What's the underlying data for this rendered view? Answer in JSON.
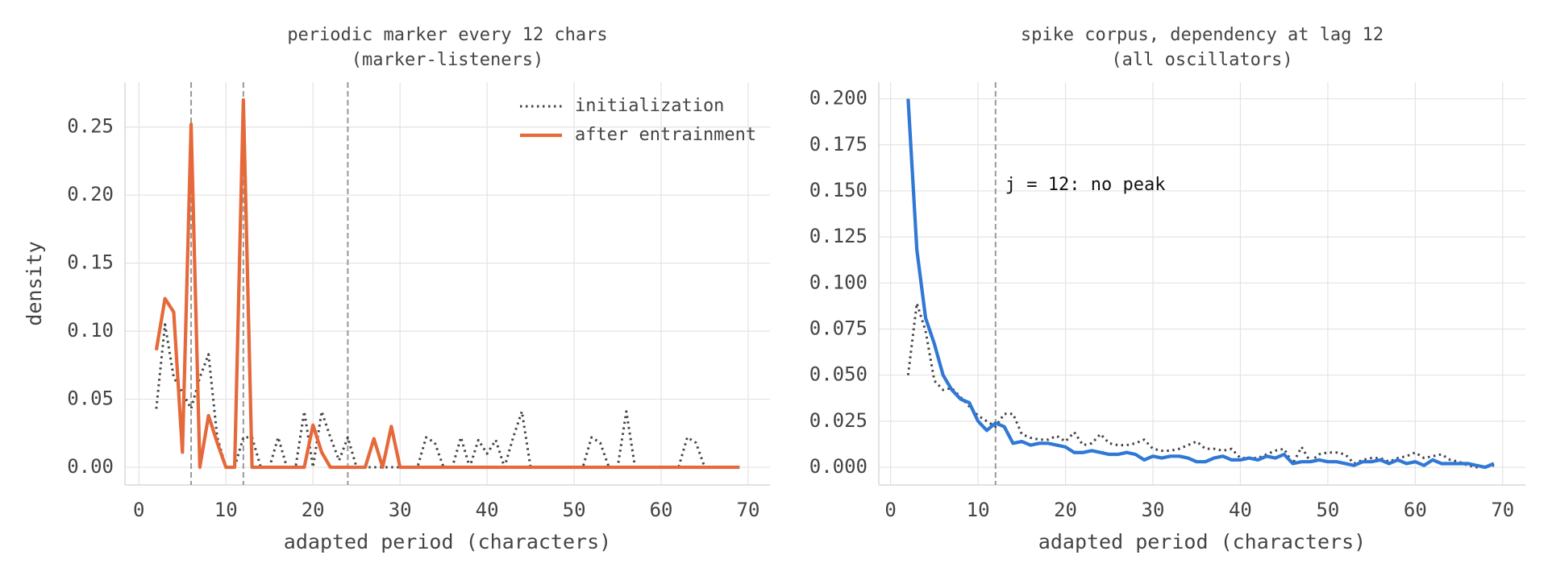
{
  "chart_data": [
    {
      "type": "line",
      "title": [
        "periodic marker every 12 chars",
        "(marker-listeners)"
      ],
      "xlabel": "adapted period (characters)",
      "ylabel": "density",
      "x": [
        2,
        3,
        4,
        5,
        6,
        7,
        8,
        9,
        10,
        11,
        12,
        13,
        14,
        15,
        16,
        17,
        18,
        19,
        20,
        21,
        22,
        23,
        24,
        25,
        26,
        27,
        28,
        29,
        30,
        31,
        32,
        33,
        34,
        35,
        36,
        37,
        38,
        39,
        40,
        41,
        42,
        43,
        44,
        45,
        46,
        47,
        48,
        49,
        50,
        51,
        52,
        53,
        54,
        55,
        56,
        57,
        58,
        59,
        60,
        61,
        62,
        63,
        64,
        65,
        66,
        67,
        68,
        69
      ],
      "series": [
        {
          "name": "initialization",
          "color": "#444444",
          "style": "dotted",
          "values": [
            0.043,
            0.105,
            0.066,
            0.055,
            0.043,
            0.066,
            0.083,
            0.022,
            0,
            0,
            0.022,
            0.022,
            0,
            0,
            0.022,
            0,
            0,
            0.041,
            0,
            0.041,
            0.022,
            0.005,
            0.022,
            0,
            0,
            0,
            0,
            0,
            0,
            0,
            0,
            0.022,
            0.018,
            0,
            0,
            0.022,
            0,
            0.02,
            0.01,
            0.02,
            0,
            0.022,
            0.041,
            0,
            0,
            0,
            0,
            0,
            0,
            0,
            0.022,
            0.018,
            0,
            0,
            0.041,
            0,
            0,
            0,
            0,
            0,
            0,
            0.022,
            0.018,
            0,
            0,
            0,
            0,
            0
          ]
        },
        {
          "name": "after entrainment",
          "color": "#e5693a",
          "style": "solid",
          "values": [
            0.086,
            0.124,
            0.114,
            0.011,
            0.252,
            0,
            0.038,
            0.018,
            0,
            0,
            0.27,
            0,
            0,
            0,
            0,
            0,
            0,
            0,
            0.031,
            0.011,
            0,
            0,
            0,
            0,
            0,
            0.021,
            0,
            0.03,
            0,
            0,
            0,
            0,
            0,
            0,
            0,
            0,
            0,
            0,
            0,
            0,
            0,
            0,
            0,
            0,
            0,
            0,
            0,
            0,
            0,
            0,
            0,
            0,
            0,
            0,
            0,
            0,
            0,
            0,
            0,
            0,
            0,
            0,
            0,
            0,
            0,
            0,
            0,
            0
          ]
        }
      ],
      "vlines": [
        6,
        12,
        24
      ],
      "xlim": [
        -1.6,
        72.5
      ],
      "xticks": [
        0,
        10,
        20,
        30,
        40,
        50,
        60,
        70
      ],
      "ylim": [
        -0.013,
        0.283
      ],
      "yticks": [
        {
          "value": 0,
          "label": "0.00"
        },
        0.05,
        {
          "value": 0.1,
          "label": "0.10"
        },
        0.15,
        {
          "value": 0.2,
          "label": "0.20"
        },
        0.25
      ],
      "grid": true,
      "legend": "upper right"
    },
    {
      "type": "line",
      "title": [
        "spike corpus, dependency at lag 12",
        "(all oscillators)"
      ],
      "xlabel": "adapted period (characters)",
      "annotation": "j = 12: no peak",
      "x": [
        2,
        3,
        4,
        5,
        6,
        7,
        8,
        9,
        10,
        11,
        12,
        13,
        14,
        15,
        16,
        17,
        18,
        19,
        20,
        21,
        22,
        23,
        24,
        25,
        26,
        27,
        28,
        29,
        30,
        31,
        32,
        33,
        34,
        35,
        36,
        37,
        38,
        39,
        40,
        41,
        42,
        43,
        44,
        45,
        46,
        47,
        48,
        49,
        50,
        51,
        52,
        53,
        54,
        55,
        56,
        57,
        58,
        59,
        60,
        61,
        62,
        63,
        64,
        65,
        66,
        67,
        68,
        69
      ],
      "series": [
        {
          "color": "#444444",
          "style": "dotted",
          "values": [
            0.05,
            0.089,
            0.074,
            0.047,
            0.042,
            0.043,
            0.038,
            0.033,
            0.028,
            0.025,
            0.022,
            0.029,
            0.029,
            0.018,
            0.016,
            0.015,
            0.015,
            0.017,
            0.014,
            0.019,
            0.012,
            0.013,
            0.018,
            0.013,
            0.012,
            0.012,
            0.013,
            0.015,
            0.01,
            0.009,
            0.009,
            0.01,
            0.012,
            0.014,
            0.01,
            0.01,
            0.009,
            0.01,
            0.005,
            0.005,
            0.005,
            0.007,
            0.009,
            0.01,
            0.002,
            0.011,
            0.003,
            0.007,
            0.008,
            0.008,
            0.007,
            0.002,
            0.004,
            0.005,
            0.005,
            0.003,
            0.005,
            0.006,
            0.008,
            0.005,
            0.006,
            0.007,
            0.004,
            0.003,
            0.001,
            0,
            0,
            0.001
          ]
        },
        {
          "color": "#2f78d6",
          "style": "solid",
          "values": [
            0.2,
            0.118,
            0.081,
            0.067,
            0.05,
            0.042,
            0.037,
            0.035,
            0.025,
            0.02,
            0.024,
            0.022,
            0.013,
            0.014,
            0.012,
            0.013,
            0.013,
            0.012,
            0.011,
            0.008,
            0.008,
            0.009,
            0.008,
            0.007,
            0.007,
            0.008,
            0.007,
            0.004,
            0.006,
            0.005,
            0.006,
            0.006,
            0.005,
            0.003,
            0.003,
            0.005,
            0.006,
            0.004,
            0.004,
            0.005,
            0.004,
            0.006,
            0.005,
            0.007,
            0.002,
            0.003,
            0.003,
            0.004,
            0.003,
            0.003,
            0.002,
            0.001,
            0.003,
            0.003,
            0.004,
            0.002,
            0.004,
            0.002,
            0.003,
            0.001,
            0.004,
            0.002,
            0.002,
            0.002,
            0.002,
            0.001,
            0,
            0.002
          ]
        }
      ],
      "vlines": [
        12
      ],
      "xlim": [
        -1.35,
        72.6
      ],
      "xticks": [
        0,
        10,
        20,
        30,
        40,
        50,
        60,
        70
      ],
      "ylim": [
        -0.0096,
        0.209
      ],
      "yticks": [
        {
          "value": 0,
          "label": "0.000"
        },
        0.025,
        {
          "value": 0.05,
          "label": "0.050"
        },
        0.075,
        {
          "value": 0.1,
          "label": "0.100"
        },
        0.125,
        {
          "value": 0.15,
          "label": "0.150"
        },
        0.175,
        {
          "value": 0.2,
          "label": "0.200"
        }
      ],
      "grid": true
    }
  ]
}
